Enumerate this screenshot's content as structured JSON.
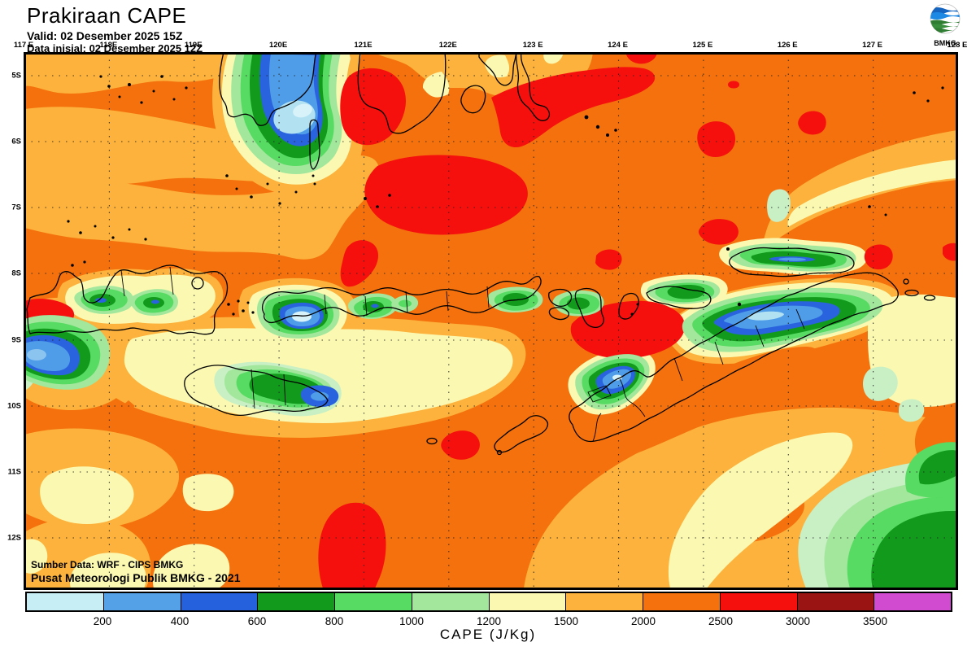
{
  "header": {
    "title": "Prakiraan CAPE",
    "valid": "Valid: 02 Desember 2025 15Z",
    "initial": "Data inisial: 02 Desember 2025 12Z"
  },
  "logo": {
    "label": "BMKG"
  },
  "map": {
    "credits": {
      "line1": "Sumber Data: WRF - CIPS BMKG",
      "line2": "Pusat Meteorologi Publik BMKG -  2021"
    },
    "region": "Nusa Tenggara / Timor (117E-128E, 5S-12S)"
  },
  "axes": {
    "lon_labels": [
      "117 E",
      "118E",
      "119E",
      "120E",
      "121E",
      "122E",
      "123 E",
      "124 E",
      "125 E",
      "126 E",
      "127 E",
      "128 E"
    ],
    "lat_labels": [
      "5S",
      "6S",
      "7S",
      "8S",
      "9S",
      "10S",
      "11S",
      "12S"
    ]
  },
  "colorbar": {
    "title": "CAPE (J/Kg)",
    "unit": "J/Kg",
    "ticks": [
      "200",
      "400",
      "600",
      "800",
      "1000",
      "1200",
      "1500",
      "2000",
      "2500",
      "3000",
      "3500"
    ],
    "colors": [
      "#C8EEF5",
      "#55A1E8",
      "#2560DD",
      "#129A1D",
      "#57DB62",
      "#A3E79D",
      "#FBF9B1",
      "#FCB23C",
      "#F4710D",
      "#F5100E",
      "#9A1414",
      "#D14BD1"
    ]
  }
}
